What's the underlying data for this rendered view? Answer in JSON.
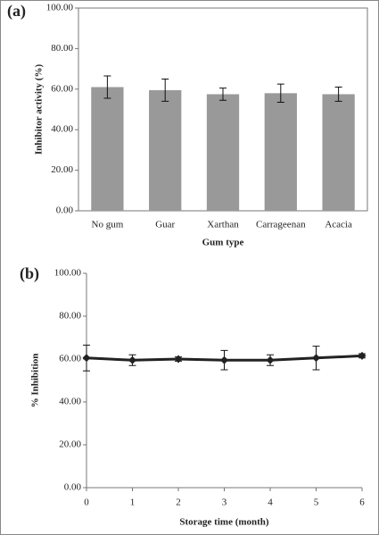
{
  "chart_data": [
    {
      "type": "bar",
      "panel_label": "(a)",
      "x_label": "Gum type",
      "y_label": "Inhibitor activity (%)",
      "categories": [
        "No gum",
        "Guar",
        "Xarthan",
        "Carrageenan",
        "Acacia"
      ],
      "values": [
        61,
        59.5,
        57.5,
        58,
        57.5
      ],
      "errors": [
        5.5,
        5.5,
        3,
        4.5,
        3.5
      ],
      "color": "#999999",
      "ylim": [
        0,
        100
      ],
      "yticks": [
        {
          "value": 0,
          "label": "0.00"
        },
        {
          "value": 20,
          "label": "20.00"
        },
        {
          "value": 40,
          "label": "40.00"
        },
        {
          "value": 60,
          "label": "60.00"
        },
        {
          "value": 80,
          "label": "80.00"
        },
        {
          "value": 100,
          "label": "100.00"
        }
      ]
    },
    {
      "type": "line",
      "panel_label": "(b)",
      "x_label": "Storage time (month)",
      "y_label": "% Inhibition",
      "x": [
        0,
        1,
        2,
        3,
        4,
        5,
        6
      ],
      "values": [
        60.5,
        59.5,
        60,
        59.5,
        59.5,
        60.5,
        61.5
      ],
      "errors": [
        6,
        2.5,
        1,
        4.5,
        2.5,
        5.5,
        1
      ],
      "color": "#222222",
      "xlim": [
        0,
        6
      ],
      "xticks": [
        0,
        1,
        2,
        3,
        4,
        5,
        6
      ],
      "ylim": [
        0,
        100
      ],
      "yticks": [
        {
          "value": 0,
          "label": "0.00"
        },
        {
          "value": 20,
          "label": "20.00"
        },
        {
          "value": 40,
          "label": "40.00"
        },
        {
          "value": 60,
          "label": "60.00"
        },
        {
          "value": 80,
          "label": "80.00"
        },
        {
          "value": 100,
          "label": "100.00"
        }
      ]
    }
  ]
}
